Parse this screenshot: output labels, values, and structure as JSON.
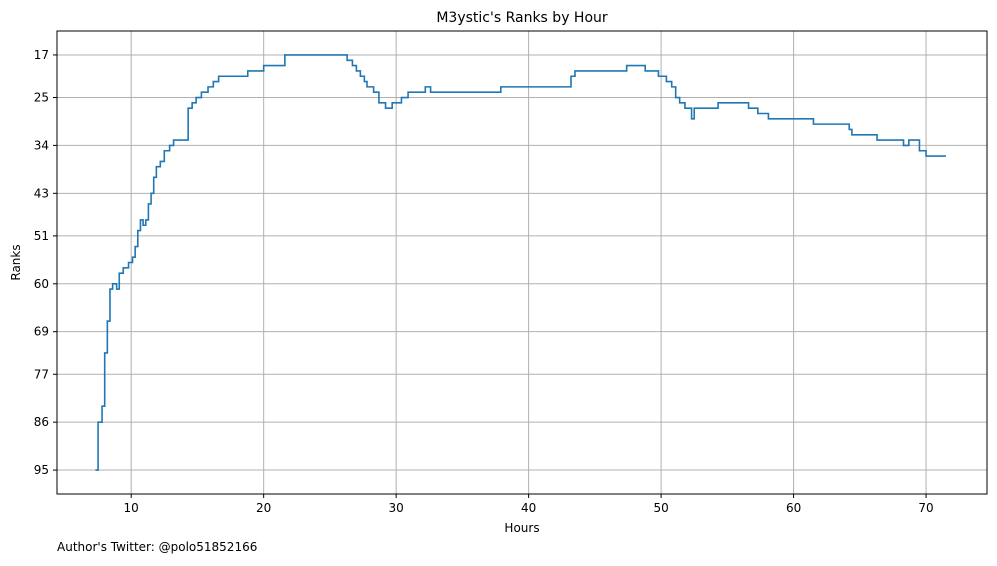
{
  "chart_data": {
    "type": "line",
    "title": "M3ystic's Ranks by Hour",
    "xlabel": "Hours",
    "ylabel": "Ranks",
    "footer": "Author's Twitter: @polo51852166",
    "xlim": [
      4.4,
      74.6
    ],
    "ylim": [
      99.5,
      12.5
    ],
    "y_inverted": true,
    "grid": true,
    "line_color": "#1f77b4",
    "grid_color": "#b0b0b0",
    "step": "post",
    "xticks": [
      10,
      20,
      30,
      40,
      50,
      60,
      70
    ],
    "xtick_labels": [
      "10",
      "20",
      "30",
      "40",
      "50",
      "60",
      "70"
    ],
    "yticks": [
      17,
      25,
      34,
      43,
      51,
      60,
      69,
      77,
      86,
      95
    ],
    "ytick_labels": [
      "17",
      "25",
      "34",
      "43",
      "51",
      "60",
      "69",
      "77",
      "86",
      "95"
    ],
    "series": [
      {
        "x": [
          7.3,
          7.5,
          7.8,
          8.0,
          8.2,
          8.4,
          8.6,
          8.9,
          9.1,
          9.4,
          9.8,
          10.1,
          10.3,
          10.5,
          10.7,
          10.9,
          11.1,
          11.3,
          11.5,
          11.7,
          11.9,
          12.2,
          12.5,
          12.9,
          13.2,
          14.3,
          14.6,
          14.9,
          15.3,
          15.8,
          16.2,
          16.6,
          18.8,
          20.0,
          21.6,
          26.3,
          26.7,
          27.0,
          27.3,
          27.6,
          27.8,
          28.3,
          28.7,
          29.2,
          29.7,
          30.4,
          30.9,
          32.2,
          32.6,
          33.3,
          37.9,
          38.2,
          43.2,
          43.5,
          47.4,
          47.7,
          48.8,
          49.8,
          50.4,
          50.8,
          51.1,
          51.4,
          51.8,
          52.3,
          52.5,
          54.3,
          56.6,
          57.3,
          58.1,
          61.5,
          64.2,
          64.4,
          66.3,
          68.3,
          68.7,
          69.5,
          70.0,
          70.8,
          71.5
        ],
        "y": [
          95,
          86,
          83,
          73,
          67,
          61,
          60,
          61,
          58,
          57,
          56,
          55,
          53,
          50,
          48,
          49,
          48,
          45,
          43,
          40,
          38,
          37,
          35,
          34,
          33,
          27,
          26,
          25,
          24,
          23,
          22,
          21,
          20,
          19,
          17,
          18,
          19,
          20,
          21,
          22,
          23,
          24,
          26,
          27,
          26,
          25,
          24,
          23,
          24,
          24,
          23,
          23,
          21,
          20,
          19,
          19,
          20,
          21,
          22,
          23,
          25,
          26,
          27,
          29,
          27,
          26,
          27,
          28,
          29,
          30,
          31,
          32,
          33,
          34,
          33,
          35,
          36,
          36,
          36
        ]
      }
    ]
  }
}
